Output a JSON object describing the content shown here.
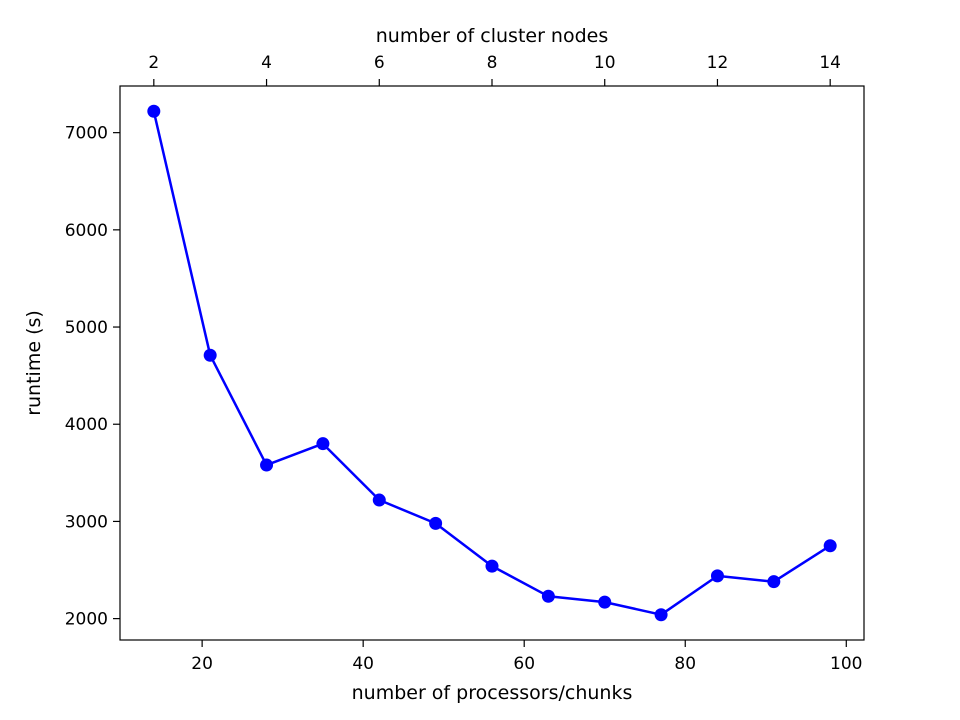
{
  "chart_data": {
    "type": "line",
    "xlabel": "number of processors/chunks",
    "ylabel": "runtime (s)",
    "top_xlabel": "number of cluster nodes",
    "xlim": [
      9.8,
      102.2
    ],
    "ylim": [
      1780,
      7480
    ],
    "x_ticks": [
      20,
      40,
      60,
      80,
      100
    ],
    "x_tick_labels": [
      "20",
      "40",
      "60",
      "80",
      "100"
    ],
    "y_ticks": [
      2000,
      3000,
      4000,
      5000,
      6000,
      7000
    ],
    "y_tick_labels": [
      "2000",
      "3000",
      "4000",
      "5000",
      "6000",
      "7000"
    ],
    "top_xlim": [
      1.4,
      14.6
    ],
    "top_ticks": [
      2,
      4,
      6,
      8,
      10,
      12,
      14
    ],
    "top_tick_labels": [
      "2",
      "4",
      "6",
      "8",
      "10",
      "12",
      "14"
    ],
    "grid": false,
    "series": [
      {
        "color": "#0000ff",
        "marker": "circle",
        "x": [
          14,
          21,
          28,
          35,
          42,
          49,
          56,
          63,
          70,
          77,
          84,
          91,
          98
        ],
        "y": [
          7220,
          4710,
          3580,
          3800,
          3220,
          2980,
          2540,
          2230,
          2170,
          2040,
          2440,
          2380,
          2750
        ]
      }
    ]
  }
}
